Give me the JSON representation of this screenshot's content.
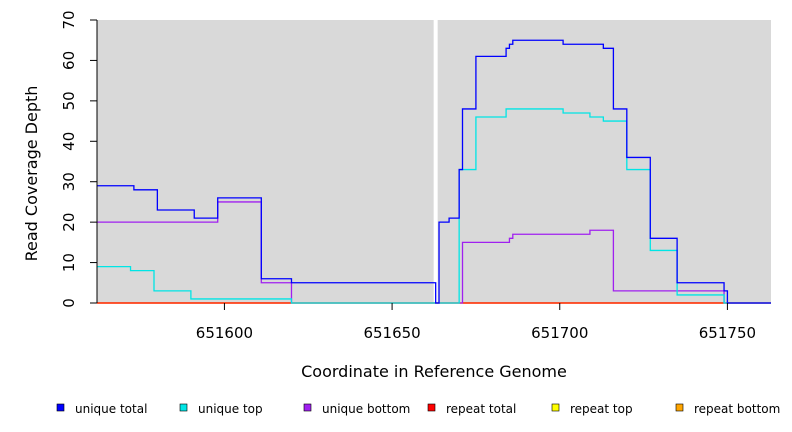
{
  "chart_data": {
    "type": "line",
    "step": true,
    "title": "",
    "xlabel": "Coordinate in Reference Genome",
    "ylabel": "Read Coverage Depth",
    "xlim": [
      651562,
      651763
    ],
    "ylim": [
      0,
      70
    ],
    "xticks": [
      651600,
      651650,
      651700,
      651750
    ],
    "yticks": [
      0,
      10,
      20,
      30,
      40,
      50,
      60,
      70
    ],
    "background": "#d9d9d9",
    "gap_x": 651663,
    "legend_position": "bottom",
    "series": [
      {
        "name": "unique total",
        "color": "#0000ff",
        "points": [
          [
            651562,
            29
          ],
          [
            651573,
            28
          ],
          [
            651580,
            23
          ],
          [
            651591,
            21
          ],
          [
            651598,
            26
          ],
          [
            651611,
            6
          ],
          [
            651620,
            5
          ],
          [
            651663,
            0
          ],
          [
            651664,
            20
          ],
          [
            651667,
            21
          ],
          [
            651670,
            33
          ],
          [
            651671,
            48
          ],
          [
            651675,
            61
          ],
          [
            651684,
            63
          ],
          [
            651685,
            64
          ],
          [
            651686,
            65
          ],
          [
            651701,
            64
          ],
          [
            651713,
            63
          ],
          [
            651716,
            48
          ],
          [
            651720,
            36
          ],
          [
            651727,
            16
          ],
          [
            651735,
            5
          ],
          [
            651749,
            3
          ],
          [
            651750,
            0
          ],
          [
            651763,
            0
          ]
        ]
      },
      {
        "name": "unique top",
        "color": "#00e5e5",
        "points": [
          [
            651562,
            9
          ],
          [
            651572,
            8
          ],
          [
            651579,
            3
          ],
          [
            651590,
            1
          ],
          [
            651620,
            0
          ],
          [
            651663,
            0
          ],
          [
            651670,
            33
          ],
          [
            651675,
            46
          ],
          [
            651684,
            48
          ],
          [
            651701,
            47
          ],
          [
            651709,
            46
          ],
          [
            651713,
            45
          ],
          [
            651720,
            33
          ],
          [
            651727,
            13
          ],
          [
            651735,
            2
          ],
          [
            651749,
            0
          ],
          [
            651763,
            0
          ]
        ]
      },
      {
        "name": "unique bottom",
        "color": "#a020f0",
        "points": [
          [
            651562,
            20
          ],
          [
            651598,
            25
          ],
          [
            651611,
            5
          ],
          [
            651620,
            0
          ],
          [
            651671,
            15
          ],
          [
            651685,
            16
          ],
          [
            651686,
            17
          ],
          [
            651709,
            18
          ],
          [
            651716,
            3
          ],
          [
            651749,
            0
          ],
          [
            651763,
            0
          ]
        ]
      },
      {
        "name": "repeat total",
        "color": "#ff0000",
        "points": [
          [
            651562,
            0
          ],
          [
            651763,
            0
          ]
        ]
      },
      {
        "name": "repeat top",
        "color": "#ffff00",
        "points": [
          [
            651562,
            0
          ],
          [
            651763,
            0
          ]
        ]
      },
      {
        "name": "repeat bottom",
        "color": "#ffa500",
        "points": [
          [
            651562,
            0
          ],
          [
            651763,
            0
          ]
        ]
      }
    ]
  }
}
